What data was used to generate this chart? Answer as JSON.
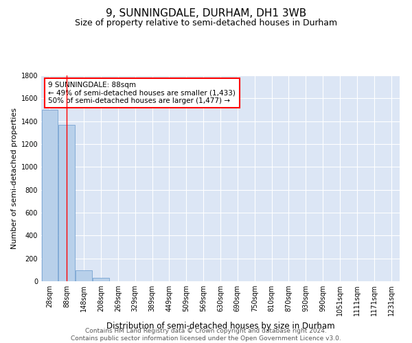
{
  "title": "9, SUNNINGDALE, DURHAM, DH1 3WB",
  "subtitle": "Size of property relative to semi-detached houses in Durham",
  "xlabel": "Distribution of semi-detached houses by size in Durham",
  "ylabel": "Number of semi-detached properties",
  "bin_labels": [
    "28sqm",
    "88sqm",
    "148sqm",
    "208sqm",
    "269sqm",
    "329sqm",
    "389sqm",
    "449sqm",
    "509sqm",
    "569sqm",
    "630sqm",
    "690sqm",
    "750sqm",
    "810sqm",
    "870sqm",
    "930sqm",
    "990sqm",
    "1051sqm",
    "1111sqm",
    "1171sqm",
    "1231sqm"
  ],
  "bar_values": [
    1500,
    1370,
    95,
    28,
    3,
    1,
    0,
    0,
    0,
    0,
    0,
    0,
    0,
    0,
    0,
    0,
    0,
    0,
    0,
    0,
    0
  ],
  "bar_color": "#b8d0ea",
  "bar_edge_color": "#6699cc",
  "vline_x": 1,
  "vline_color": "red",
  "annotation_text": "9 SUNNINGDALE: 88sqm\n← 49% of semi-detached houses are smaller (1,433)\n50% of semi-detached houses are larger (1,477) →",
  "annotation_box_color": "white",
  "annotation_box_edge": "red",
  "ylim": [
    0,
    1800
  ],
  "yticks": [
    0,
    200,
    400,
    600,
    800,
    1000,
    1200,
    1400,
    1600,
    1800
  ],
  "background_color": "#dce6f5",
  "footer_text": "Contains HM Land Registry data © Crown copyright and database right 2024.\nContains public sector information licensed under the Open Government Licence v3.0.",
  "title_fontsize": 11,
  "subtitle_fontsize": 9,
  "xlabel_fontsize": 8.5,
  "ylabel_fontsize": 8,
  "tick_fontsize": 7,
  "annotation_fontsize": 7.5,
  "footer_fontsize": 6.5
}
